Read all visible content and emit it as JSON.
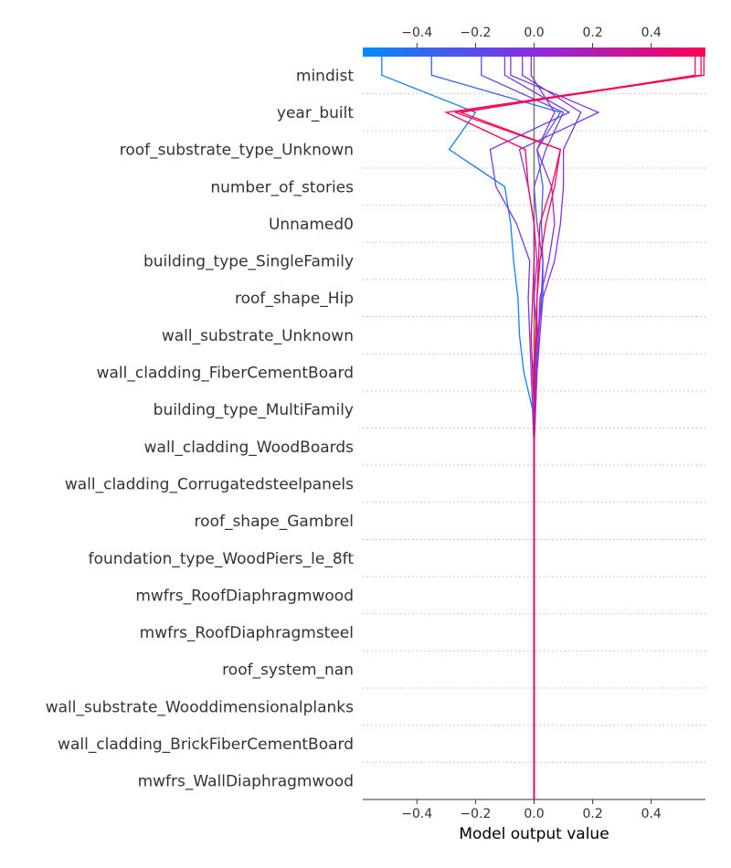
{
  "chart_data": {
    "type": "line",
    "subtype": "decision-plot",
    "xlabel": "Model output value",
    "xlim": [
      -0.585,
      0.585
    ],
    "base_value": 0.0,
    "x_ticks": [
      -0.4,
      -0.2,
      0.0,
      0.2,
      0.4
    ],
    "x_tick_labels": [
      "−0.4",
      "−0.2",
      "0.0",
      "0.2",
      "0.4"
    ],
    "grid": "dotted horizontal lines per feature",
    "colorbar": {
      "position": "top",
      "from": "#008bfb",
      "mid": "#8a2be2",
      "to": "#ff0052",
      "range": [
        -0.585,
        0.585
      ]
    },
    "features": [
      "mindist",
      "year_built",
      "roof_substrate_type_Unknown",
      "number_of_stories",
      "Unnamed0",
      "building_type_SingleFamily",
      "roof_shape_Hip",
      "wall_substrate_Unknown",
      "wall_cladding_FiberCementBoard",
      "building_type_MultiFamily",
      "wall_cladding_WoodBoards",
      "wall_cladding_Corrugatedsteelpanels",
      "roof_shape_Gambrel",
      "foundation_type_WoodPiers_le_8ft",
      "mwfrs_RoofDiaphragmwood",
      "mwfrs_RoofDiaphragmsteel",
      "roof_system_nan",
      "wall_substrate_Wooddimensionalplanks",
      "wall_cladding_BrickFiberCementBoard",
      "mwfrs_WallDiaphragmwood"
    ],
    "series_note": "values listed from the bottom feature (base value 0.0) up to the top feature; final value is the model output",
    "series": [
      {
        "values": [
          0,
          0,
          0,
          0,
          0,
          0,
          0,
          0,
          0,
          0,
          -0.005,
          -0.035,
          -0.05,
          -0.055,
          -0.07,
          -0.08,
          -0.1,
          -0.29,
          -0.2,
          -0.52
        ]
      },
      {
        "values": [
          0,
          0,
          0,
          0,
          0,
          0,
          0,
          0,
          0,
          0,
          0,
          0.005,
          0.01,
          0.03,
          0.03,
          0.025,
          0.03,
          0.01,
          0.09,
          -0.35
        ]
      },
      {
        "values": [
          0,
          0,
          0,
          0,
          0,
          0,
          0,
          0,
          0,
          0,
          0.005,
          0.01,
          0.015,
          0.025,
          0.03,
          0.01,
          0.0,
          0.04,
          0.1,
          -0.18
        ]
      },
      {
        "values": [
          0,
          0,
          0,
          0,
          0,
          0,
          0,
          0,
          0,
          0,
          -0.005,
          -0.01,
          -0.015,
          -0.02,
          -0.015,
          -0.06,
          -0.13,
          -0.15,
          0.12,
          -0.1
        ]
      },
      {
        "values": [
          0,
          0,
          0,
          0,
          0,
          0,
          0,
          0,
          0,
          0,
          0.0,
          -0.005,
          0.01,
          0.0,
          0.01,
          0.0,
          -0.02,
          -0.05,
          0.22,
          -0.08
        ]
      },
      {
        "values": [
          0,
          0,
          0,
          0,
          0,
          0,
          0,
          0,
          0,
          0,
          0.005,
          0.01,
          0.02,
          0.03,
          0.07,
          0.09,
          0.1,
          0.1,
          0.16,
          -0.04
        ]
      },
      {
        "values": [
          0,
          0,
          0,
          0,
          0,
          0,
          0,
          0,
          0,
          0,
          0.002,
          0.008,
          0.015,
          0.02,
          0.05,
          0.07,
          0.06,
          0.01,
          0.07,
          -0.01
        ]
      },
      {
        "values": [
          0,
          0,
          0,
          0,
          0,
          0,
          0,
          0,
          0,
          0,
          0.0,
          0.002,
          0.005,
          0.01,
          0.02,
          0.04,
          0.07,
          0.09,
          -0.27,
          0.58
        ]
      },
      {
        "values": [
          0,
          0,
          0,
          0,
          0,
          0,
          0,
          0,
          0,
          0,
          0.0,
          -0.005,
          -0.01,
          -0.005,
          0.0,
          0.0,
          -0.02,
          -0.03,
          -0.3,
          0.57
        ]
      },
      {
        "values": [
          0,
          0,
          0,
          0,
          0,
          0,
          0,
          0,
          0,
          0,
          0.0,
          0.0,
          0.01,
          0.01,
          0.015,
          0.02,
          0.06,
          0.09,
          -0.25,
          0.55
        ]
      }
    ]
  }
}
